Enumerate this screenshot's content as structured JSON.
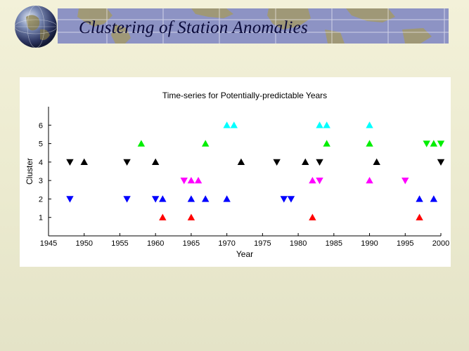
{
  "slide": {
    "title": "Clustering of Station Anomalies"
  },
  "chart_data": {
    "type": "scatter",
    "title": "Time-series for Potentially-predictable Years",
    "xlabel": "Year",
    "ylabel": "Cluster",
    "xlim": [
      1945,
      2000
    ],
    "ylim": [
      0,
      7
    ],
    "xticks": [
      1945,
      1950,
      1955,
      1960,
      1965,
      1970,
      1975,
      1980,
      1985,
      1990,
      1995,
      2000
    ],
    "yticks": [
      1,
      2,
      3,
      4,
      5,
      6
    ],
    "grid": false,
    "colors": {
      "1": "#ff0000",
      "2": "#0000ff",
      "3": "#ff00ff",
      "4": "#000000",
      "5": "#00ee00",
      "6": "#00ffff"
    },
    "series": [
      {
        "name": "Cluster 1",
        "cluster": 1,
        "points": [
          {
            "x": 1961,
            "y": 1,
            "marker": "up"
          },
          {
            "x": 1965,
            "y": 1,
            "marker": "up"
          },
          {
            "x": 1982,
            "y": 1,
            "marker": "up"
          },
          {
            "x": 1997,
            "y": 1,
            "marker": "up"
          }
        ]
      },
      {
        "name": "Cluster 2",
        "cluster": 2,
        "points": [
          {
            "x": 1948,
            "y": 2,
            "marker": "down"
          },
          {
            "x": 1956,
            "y": 2,
            "marker": "down"
          },
          {
            "x": 1960,
            "y": 2,
            "marker": "down"
          },
          {
            "x": 1961,
            "y": 2,
            "marker": "up"
          },
          {
            "x": 1965,
            "y": 2,
            "marker": "up"
          },
          {
            "x": 1967,
            "y": 2,
            "marker": "up"
          },
          {
            "x": 1970,
            "y": 2,
            "marker": "up"
          },
          {
            "x": 1978,
            "y": 2,
            "marker": "down"
          },
          {
            "x": 1979,
            "y": 2,
            "marker": "down"
          },
          {
            "x": 1997,
            "y": 2,
            "marker": "up"
          },
          {
            "x": 1999,
            "y": 2,
            "marker": "up"
          }
        ]
      },
      {
        "name": "Cluster 3",
        "cluster": 3,
        "points": [
          {
            "x": 1964,
            "y": 3,
            "marker": "down"
          },
          {
            "x": 1965,
            "y": 3,
            "marker": "up"
          },
          {
            "x": 1966,
            "y": 3,
            "marker": "up"
          },
          {
            "x": 1982,
            "y": 3,
            "marker": "up"
          },
          {
            "x": 1983,
            "y": 3,
            "marker": "down"
          },
          {
            "x": 1990,
            "y": 3,
            "marker": "up"
          },
          {
            "x": 1995,
            "y": 3,
            "marker": "down"
          }
        ]
      },
      {
        "name": "Cluster 4",
        "cluster": 4,
        "points": [
          {
            "x": 1948,
            "y": 4,
            "marker": "down"
          },
          {
            "x": 1950,
            "y": 4,
            "marker": "up"
          },
          {
            "x": 1956,
            "y": 4,
            "marker": "down"
          },
          {
            "x": 1960,
            "y": 4,
            "marker": "up"
          },
          {
            "x": 1972,
            "y": 4,
            "marker": "up"
          },
          {
            "x": 1977,
            "y": 4,
            "marker": "down"
          },
          {
            "x": 1981,
            "y": 4,
            "marker": "up"
          },
          {
            "x": 1983,
            "y": 4,
            "marker": "down"
          },
          {
            "x": 1991,
            "y": 4,
            "marker": "up"
          },
          {
            "x": 2000,
            "y": 4,
            "marker": "down"
          }
        ]
      },
      {
        "name": "Cluster 5",
        "cluster": 5,
        "points": [
          {
            "x": 1958,
            "y": 5,
            "marker": "up"
          },
          {
            "x": 1967,
            "y": 5,
            "marker": "up"
          },
          {
            "x": 1984,
            "y": 5,
            "marker": "up"
          },
          {
            "x": 1990,
            "y": 5,
            "marker": "up"
          },
          {
            "x": 1998,
            "y": 5,
            "marker": "down"
          },
          {
            "x": 1999,
            "y": 5,
            "marker": "up"
          },
          {
            "x": 2000,
            "y": 5,
            "marker": "down"
          }
        ]
      },
      {
        "name": "Cluster 6",
        "cluster": 6,
        "points": [
          {
            "x": 1970,
            "y": 6,
            "marker": "up"
          },
          {
            "x": 1971,
            "y": 6,
            "marker": "up"
          },
          {
            "x": 1983,
            "y": 6,
            "marker": "up"
          },
          {
            "x": 1984,
            "y": 6,
            "marker": "up"
          },
          {
            "x": 1990,
            "y": 6,
            "marker": "up"
          }
        ]
      }
    ]
  }
}
